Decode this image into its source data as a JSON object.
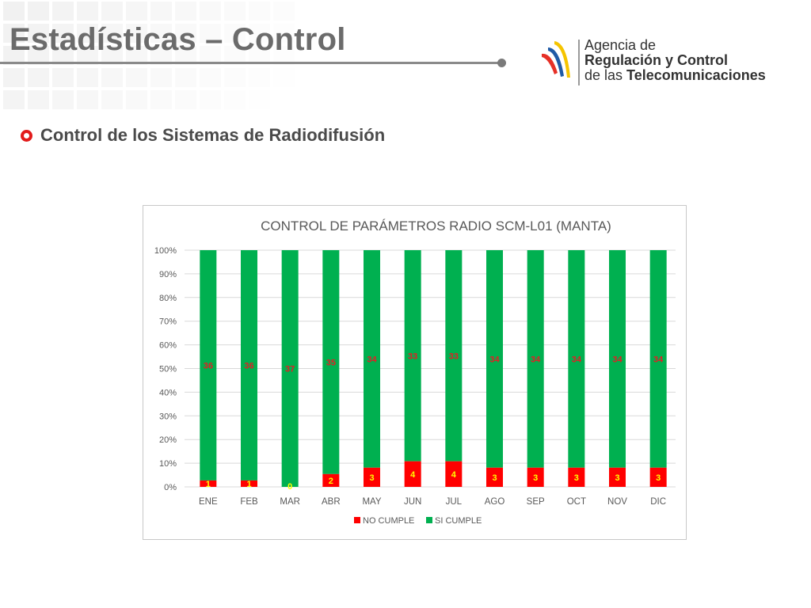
{
  "slide": {
    "title": "Estadísticas – Control",
    "bullet": "Control de los Sistemas de Radiodifusión"
  },
  "logo": {
    "line1": "Agencia de",
    "line2": "Regulación y Control",
    "line3_prefix": "de las ",
    "line3_bold": "Telecomunicaciones"
  },
  "colors": {
    "no_cumple": "#ff0000",
    "si_cumple": "#00b050",
    "bullet": "#e21b1b",
    "title": "#6b6b6b"
  },
  "chart_data": {
    "type": "bar",
    "stacked": "percent",
    "title": "CONTROL DE PARÁMETROS RADIO SCM-L01 (MANTA)",
    "categories": [
      "ENE",
      "FEB",
      "MAR",
      "ABR",
      "MAY",
      "JUN",
      "JUL",
      "AGO",
      "SEP",
      "OCT",
      "NOV",
      "DIC"
    ],
    "series": [
      {
        "name": "NO CUMPLE",
        "color": "#ff0000",
        "values": [
          1,
          1,
          0,
          2,
          3,
          4,
          4,
          3,
          3,
          3,
          3,
          3
        ]
      },
      {
        "name": "SI CUMPLE",
        "color": "#00b050",
        "values": [
          36,
          36,
          37,
          35,
          34,
          33,
          33,
          34,
          34,
          34,
          34,
          34
        ]
      }
    ],
    "y_ticks": [
      "0%",
      "10%",
      "20%",
      "30%",
      "40%",
      "50%",
      "60%",
      "70%",
      "80%",
      "90%",
      "100%"
    ],
    "ylim": [
      0,
      100
    ],
    "grid": true,
    "legend": "bottom"
  }
}
